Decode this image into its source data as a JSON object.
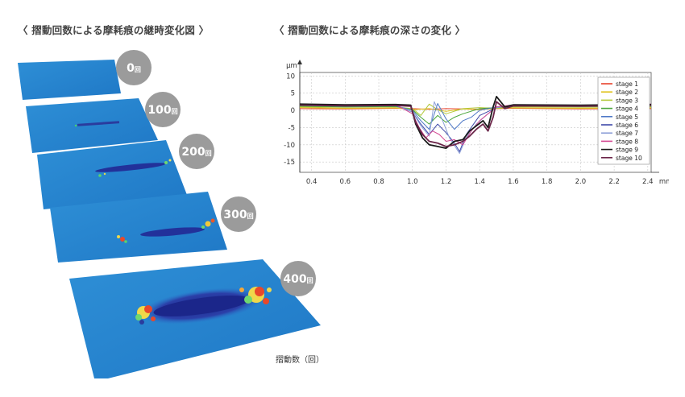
{
  "left_panel": {
    "title": "〈 摺動回数による摩耗痕の継時変化図 〉",
    "badges": [
      {
        "num": "0",
        "unit": "回"
      },
      {
        "num": "100",
        "unit": "回"
      },
      {
        "num": "200",
        "unit": "回"
      },
      {
        "num": "300",
        "unit": "回"
      },
      {
        "num": "400",
        "unit": "回"
      }
    ],
    "axis_note": "摺動数（回）"
  },
  "right_panel": {
    "title": "〈 摺動回数による摩耗痕の深さの変化 〉"
  },
  "chart_data": {
    "type": "line",
    "title": "",
    "ylabel": "μm",
    "xlabel": "",
    "x_unit": "mm",
    "xlim": [
      0.33,
      2.42
    ],
    "ylim": [
      -18,
      11
    ],
    "xticks": [
      "0.4",
      "0.6",
      "0.8",
      "1.0",
      "1.2",
      "1.4",
      "1.6",
      "1.8",
      "2.0",
      "2.2",
      "2.4"
    ],
    "yticks": [
      "10",
      "5",
      "0",
      "-5",
      "-10",
      "-15"
    ],
    "grid": true,
    "legend_position": "right",
    "series": [
      {
        "name": "stage 1",
        "color": "#e8422c",
        "x": [
          0.33,
          0.6,
          0.9,
          1.0,
          1.1,
          1.2,
          1.3,
          1.4,
          1.5,
          1.6,
          2.0,
          2.42
        ],
        "y": [
          0.5,
          0.4,
          0.6,
          0.5,
          0.3,
          0.5,
          0.4,
          0.3,
          0.5,
          0.6,
          0.4,
          0.5
        ]
      },
      {
        "name": "stage 2",
        "color": "#e0c21c",
        "x": [
          0.33,
          0.6,
          0.9,
          1.0,
          1.1,
          1.2,
          1.3,
          1.4,
          1.5,
          1.6,
          2.0,
          2.42
        ],
        "y": [
          0.8,
          0.6,
          0.7,
          0.2,
          0.5,
          -0.3,
          0.4,
          0.2,
          0.6,
          0.7,
          0.6,
          0.7
        ]
      },
      {
        "name": "stage 3",
        "color": "#b3c93a",
        "x": [
          0.33,
          0.6,
          0.9,
          1.0,
          1.05,
          1.1,
          1.15,
          1.2,
          1.3,
          1.4,
          1.5,
          1.6,
          2.0,
          2.42
        ],
        "y": [
          1.0,
          0.9,
          1.0,
          0.5,
          -1.5,
          1.8,
          0.2,
          -1.0,
          0.5,
          0.8,
          0.6,
          1.0,
          0.9,
          1.0
        ]
      },
      {
        "name": "stage 4",
        "color": "#4aa63c",
        "x": [
          0.33,
          0.6,
          0.9,
          1.0,
          1.05,
          1.1,
          1.15,
          1.2,
          1.25,
          1.3,
          1.4,
          1.5,
          1.6,
          2.0,
          2.42
        ],
        "y": [
          1.2,
          1.0,
          1.1,
          0.2,
          -2.0,
          -4.0,
          -1.5,
          -3.5,
          -2.0,
          -1.0,
          0.5,
          0.8,
          1.2,
          1.1,
          1.2
        ]
      },
      {
        "name": "stage 5",
        "color": "#4f79c7",
        "x": [
          0.33,
          0.6,
          0.9,
          1.0,
          1.05,
          1.1,
          1.15,
          1.2,
          1.25,
          1.3,
          1.35,
          1.4,
          1.5,
          1.6,
          2.0,
          2.42
        ],
        "y": [
          1.4,
          1.2,
          1.3,
          0.0,
          -3.0,
          -5.5,
          2.0,
          -2.5,
          -5.5,
          -3.0,
          -2.0,
          0.0,
          1.0,
          1.3,
          1.2,
          1.4
        ]
      },
      {
        "name": "stage 6",
        "color": "#3f4aa8",
        "x": [
          0.33,
          0.6,
          0.9,
          1.0,
          1.05,
          1.1,
          1.15,
          1.2,
          1.25,
          1.28,
          1.32,
          1.4,
          1.5,
          1.6,
          2.0,
          2.42
        ],
        "y": [
          1.5,
          1.3,
          1.4,
          -0.5,
          -4.0,
          -7.0,
          -4.0,
          -6.5,
          -9.5,
          -12.0,
          -7.0,
          -1.5,
          0.8,
          1.4,
          1.3,
          1.5
        ]
      },
      {
        "name": "stage 7",
        "color": "#8ea0d8",
        "x": [
          0.33,
          0.6,
          0.9,
          1.0,
          1.05,
          1.1,
          1.13,
          1.18,
          1.22,
          1.28,
          1.32,
          1.38,
          1.45,
          1.5,
          1.6,
          2.0,
          2.42
        ],
        "y": [
          1.6,
          1.4,
          1.5,
          -0.5,
          -4.5,
          -7.5,
          2.5,
          -3.0,
          -8.0,
          -12.5,
          -8.0,
          -4.0,
          -1.0,
          0.8,
          1.5,
          1.4,
          1.6
        ]
      },
      {
        "name": "stage 8",
        "color": "#d44a93",
        "x": [
          0.33,
          0.6,
          0.9,
          1.0,
          1.04,
          1.08,
          1.12,
          1.16,
          1.2,
          1.25,
          1.3,
          1.35,
          1.4,
          1.45,
          1.5,
          1.6,
          2.0,
          2.42
        ],
        "y": [
          1.8,
          1.6,
          1.7,
          -1.0,
          -5.0,
          -8.0,
          -6.0,
          -7.0,
          -9.0,
          -8.5,
          -10.0,
          -6.0,
          -3.0,
          -1.0,
          1.0,
          1.6,
          1.5,
          1.8
        ]
      },
      {
        "name": "stage 9",
        "color": "#1a1a1a",
        "x": [
          0.33,
          0.6,
          0.9,
          0.99,
          1.02,
          1.06,
          1.1,
          1.15,
          1.2,
          1.25,
          1.3,
          1.34,
          1.38,
          1.42,
          1.45,
          1.48,
          1.5,
          1.55,
          1.6,
          2.0,
          2.42
        ],
        "y": [
          1.8,
          1.6,
          1.7,
          1.5,
          -4.0,
          -8.0,
          -10.0,
          -10.5,
          -11.0,
          -9.0,
          -8.5,
          -6.0,
          -4.5,
          -3.0,
          -5.0,
          1.0,
          4.0,
          1.0,
          1.6,
          1.5,
          1.7
        ]
      },
      {
        "name": "stage 10",
        "color": "#6a2448",
        "x": [
          0.33,
          0.6,
          0.9,
          0.99,
          1.02,
          1.06,
          1.1,
          1.15,
          1.2,
          1.25,
          1.3,
          1.34,
          1.38,
          1.42,
          1.45,
          1.48,
          1.5,
          1.55,
          1.6,
          2.0,
          2.42
        ],
        "y": [
          1.5,
          1.3,
          1.4,
          1.2,
          -3.5,
          -7.0,
          -9.0,
          -9.5,
          -10.5,
          -10.0,
          -9.0,
          -7.5,
          -5.5,
          -4.0,
          -6.0,
          -2.0,
          2.5,
          0.5,
          1.3,
          1.2,
          1.4
        ]
      }
    ]
  }
}
